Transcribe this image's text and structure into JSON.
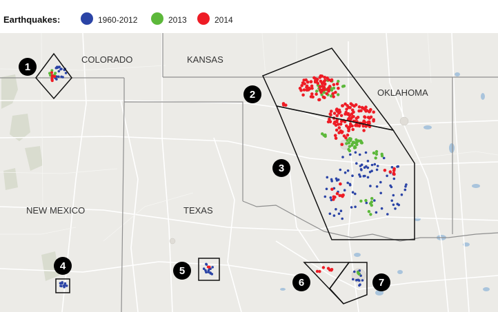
{
  "legend": {
    "title": "Earthquakes:",
    "items": [
      {
        "label": "1960-2012",
        "color": "#2b44a6"
      },
      {
        "label": "2013",
        "color": "#5cb83a"
      },
      {
        "label": "2014",
        "color": "#ee1c25"
      }
    ]
  },
  "map": {
    "states": [
      "COLORADO",
      "KANSAS",
      "OKLAHOMA",
      "NEW MEXICO",
      "TEXAS"
    ],
    "regions": [
      "1",
      "2",
      "3",
      "4",
      "5",
      "6",
      "7"
    ],
    "colors": {
      "background": "#ecebe7",
      "state_border": "#8e8e8e",
      "road": "#ffffff",
      "water": "#a9c4dc",
      "outline": "#111111"
    }
  }
}
